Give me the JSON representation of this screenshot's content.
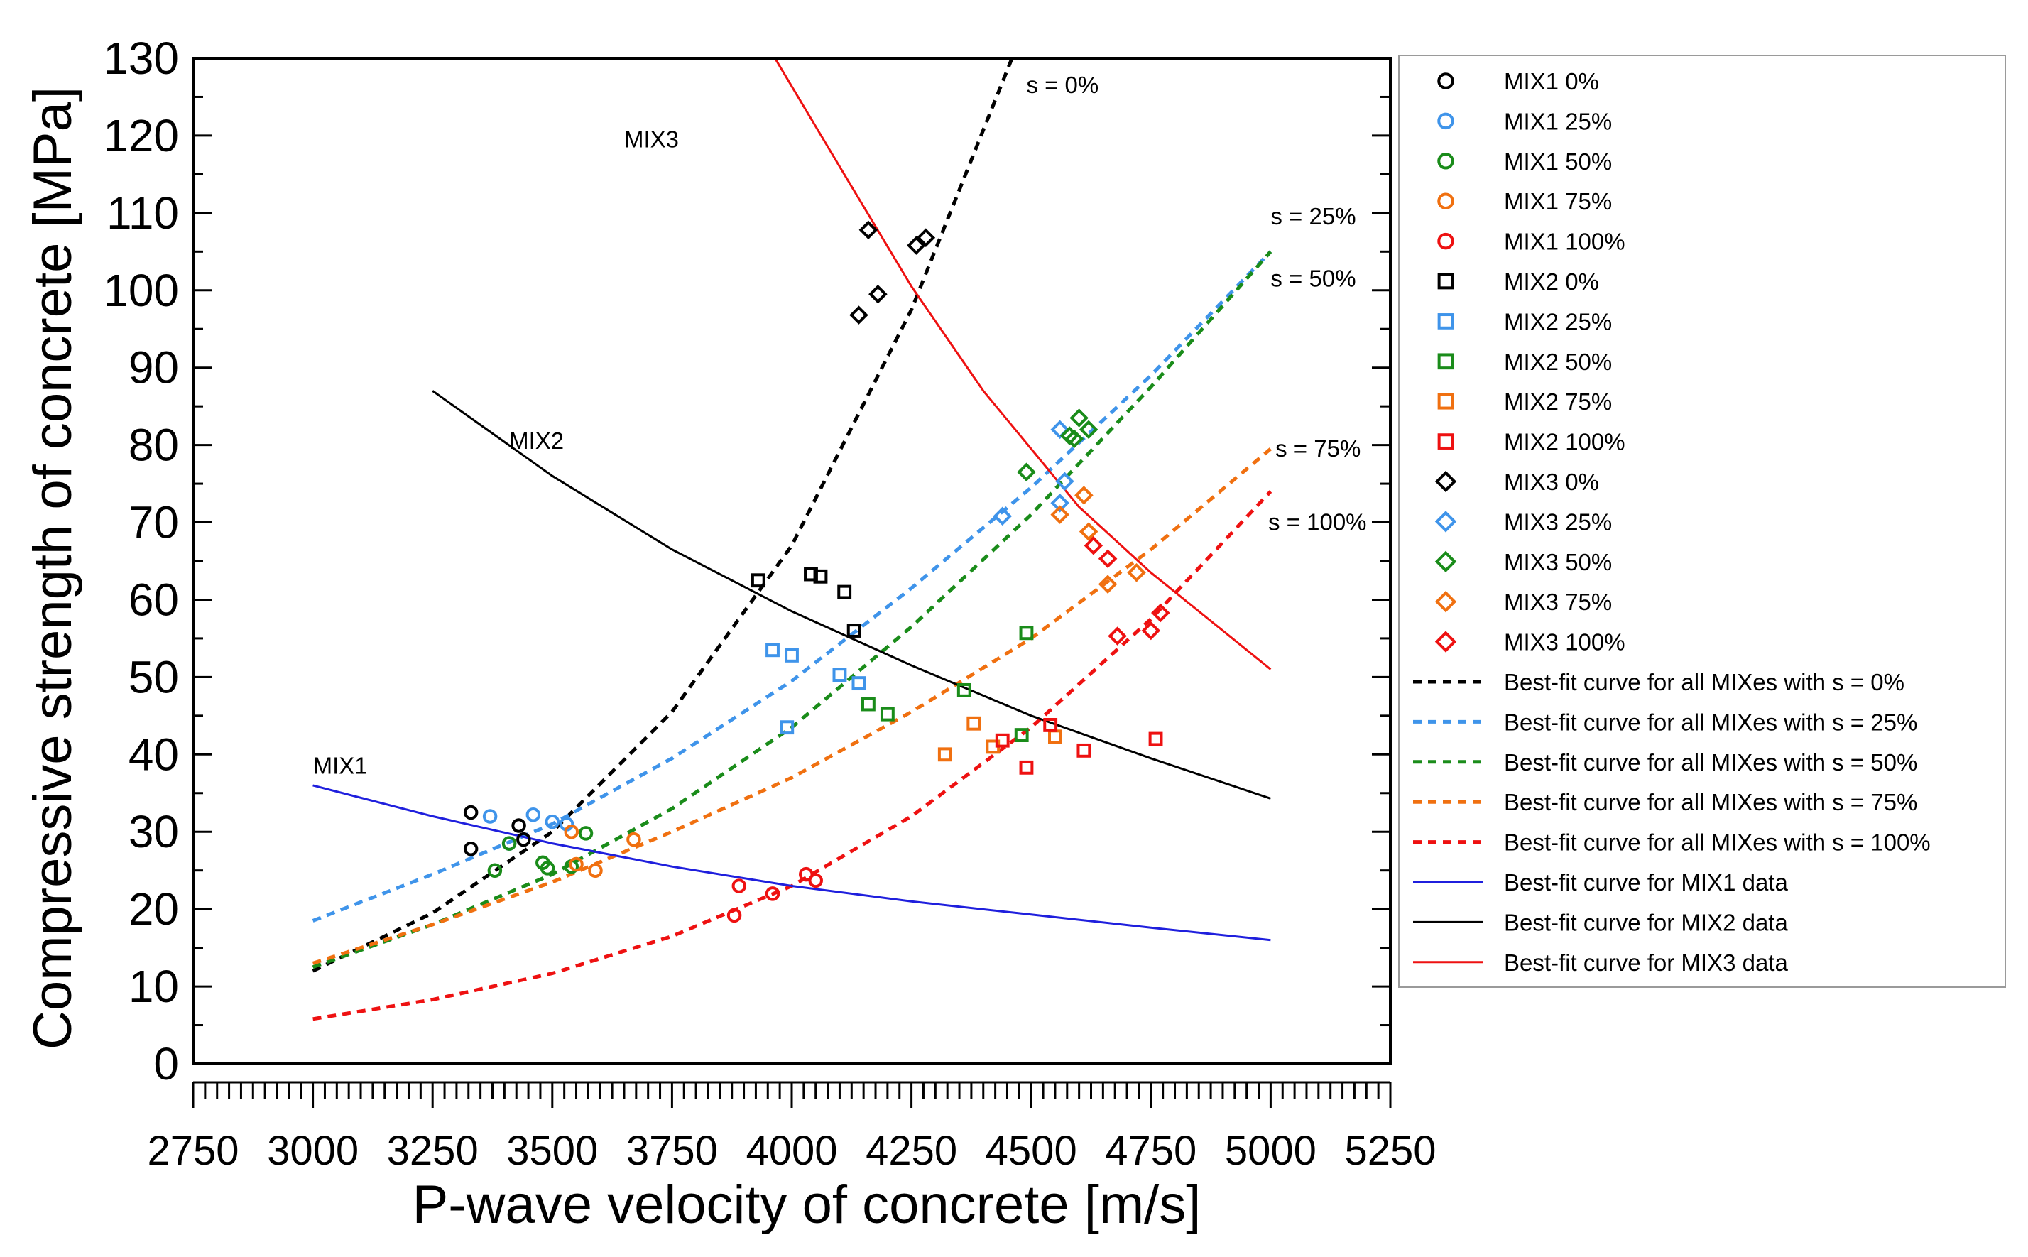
{
  "chart_data": {
    "type": "scatter",
    "title": "",
    "xlabel": "P-wave velocity of concrete [m/s]",
    "ylabel": "Compressive strength of concrete [MPa]",
    "xlim": [
      2750,
      5250
    ],
    "ylim": [
      0,
      130
    ],
    "x_ticks": [
      2750,
      3000,
      3250,
      3500,
      3750,
      4000,
      4250,
      4500,
      4750,
      5000,
      5250
    ],
    "y_ticks": [
      0,
      10,
      20,
      30,
      40,
      50,
      60,
      70,
      80,
      90,
      100,
      110,
      120,
      130
    ],
    "grid": false,
    "legend_position": "right, outside plot",
    "colors": {
      "s0": "#000000",
      "s25": "#3f94ea",
      "s50": "#1a8c1a",
      "s75": "#f07010",
      "s100": "#ee1111",
      "mix1_fit": "#1f1fdd",
      "mix2_fit": "#000000",
      "mix3_fit": "#ee1111"
    },
    "series": [
      {
        "name": "MIX1 0%",
        "marker": "circle",
        "color": "#000000",
        "points": [
          [
            3330,
            27.8
          ],
          [
            3330,
            32.5
          ],
          [
            3430,
            30.8
          ],
          [
            3440,
            29.0
          ]
        ]
      },
      {
        "name": "MIX1 25%",
        "marker": "circle",
        "color": "#3f94ea",
        "points": [
          [
            3370,
            32.0
          ],
          [
            3460,
            32.2
          ],
          [
            3500,
            31.3
          ],
          [
            3530,
            31.0
          ],
          [
            3410,
            28.5
          ]
        ]
      },
      {
        "name": "MIX1 50%",
        "marker": "circle",
        "color": "#1a8c1a",
        "points": [
          [
            3380,
            25.0
          ],
          [
            3410,
            28.5
          ],
          [
            3480,
            26.0
          ],
          [
            3490,
            25.3
          ],
          [
            3540,
            25.5
          ],
          [
            3570,
            29.8
          ]
        ]
      },
      {
        "name": "MIX1 75%",
        "marker": "circle",
        "color": "#f07010",
        "points": [
          [
            3540,
            30.0
          ],
          [
            3550,
            25.8
          ],
          [
            3590,
            25.0
          ],
          [
            3670,
            29.0
          ]
        ]
      },
      {
        "name": "MIX1 100%",
        "marker": "circle",
        "color": "#ee1111",
        "points": [
          [
            3880,
            19.2
          ],
          [
            3890,
            23.0
          ],
          [
            3960,
            22.0
          ],
          [
            4030,
            24.5
          ],
          [
            4050,
            23.7
          ]
        ]
      },
      {
        "name": "MIX2 0%",
        "marker": "square",
        "color": "#000000",
        "points": [
          [
            3930,
            62.5
          ],
          [
            4040,
            63.3
          ],
          [
            4060,
            63.0
          ],
          [
            4110,
            61.0
          ],
          [
            4130,
            56.0
          ]
        ]
      },
      {
        "name": "MIX2 25%",
        "marker": "square",
        "color": "#3f94ea",
        "points": [
          [
            3960,
            53.5
          ],
          [
            4000,
            52.8
          ],
          [
            3990,
            43.5
          ],
          [
            4100,
            50.3
          ],
          [
            4140,
            49.2
          ]
        ]
      },
      {
        "name": "MIX2 50%",
        "marker": "square",
        "color": "#1a8c1a",
        "points": [
          [
            4160,
            46.5
          ],
          [
            4200,
            45.2
          ],
          [
            4360,
            48.3
          ],
          [
            4490,
            55.7
          ],
          [
            4480,
            42.5
          ]
        ]
      },
      {
        "name": "MIX2 75%",
        "marker": "square",
        "color": "#f07010",
        "points": [
          [
            4320,
            40.0
          ],
          [
            4380,
            44.0
          ],
          [
            4420,
            41.0
          ],
          [
            4550,
            42.3
          ]
        ]
      },
      {
        "name": "MIX2 100%",
        "marker": "square",
        "color": "#ee1111",
        "points": [
          [
            4440,
            41.8
          ],
          [
            4490,
            38.3
          ],
          [
            4540,
            43.8
          ],
          [
            4610,
            40.5
          ],
          [
            4760,
            42.0
          ]
        ]
      },
      {
        "name": "MIX3 0%",
        "marker": "diamond",
        "color": "#000000",
        "points": [
          [
            4140,
            96.8
          ],
          [
            4160,
            107.8
          ],
          [
            4180,
            99.5
          ],
          [
            4260,
            105.8
          ],
          [
            4280,
            106.8
          ]
        ]
      },
      {
        "name": "MIX3 25%",
        "marker": "diamond",
        "color": "#3f94ea",
        "points": [
          [
            4440,
            70.8
          ],
          [
            4560,
            82.0
          ],
          [
            4570,
            75.3
          ],
          [
            4560,
            72.5
          ]
        ]
      },
      {
        "name": "MIX3 50%",
        "marker": "diamond",
        "color": "#1a8c1a",
        "points": [
          [
            4490,
            76.5
          ],
          [
            4580,
            81.2
          ],
          [
            4600,
            83.5
          ],
          [
            4620,
            82.0
          ],
          [
            4590,
            80.8
          ]
        ]
      },
      {
        "name": "MIX3 75%",
        "marker": "diamond",
        "color": "#f07010",
        "points": [
          [
            4560,
            71.0
          ],
          [
            4610,
            73.5
          ],
          [
            4620,
            68.8
          ],
          [
            4660,
            62.0
          ],
          [
            4720,
            63.5
          ]
        ]
      },
      {
        "name": "MIX3 100%",
        "marker": "diamond",
        "color": "#ee1111",
        "points": [
          [
            4630,
            67.0
          ],
          [
            4660,
            65.3
          ],
          [
            4680,
            55.3
          ],
          [
            4750,
            56.0
          ],
          [
            4770,
            58.3
          ]
        ]
      }
    ],
    "fit_curves": [
      {
        "name": "Best-fit curve for all MIXes with s = 0%",
        "style": "dashed",
        "color": "#000000",
        "points": [
          [
            3000,
            12.0
          ],
          [
            3250,
            19.5
          ],
          [
            3500,
            30.0
          ],
          [
            3750,
            45.5
          ],
          [
            4000,
            67.0
          ],
          [
            4250,
            97.5
          ],
          [
            4460,
            130.0
          ]
        ]
      },
      {
        "name": "Best-fit curve for all MIXes with s = 25%",
        "style": "dashed",
        "color": "#3f94ea",
        "points": [
          [
            3000,
            18.5
          ],
          [
            3250,
            24.5
          ],
          [
            3500,
            31.0
          ],
          [
            3750,
            39.5
          ],
          [
            4000,
            49.5
          ],
          [
            4250,
            61.5
          ],
          [
            4500,
            74.5
          ],
          [
            4750,
            89.0
          ],
          [
            5000,
            105.0
          ]
        ]
      },
      {
        "name": "Best-fit curve for all MIXes with s = 50%",
        "style": "dashed",
        "color": "#1a8c1a",
        "points": [
          [
            3000,
            12.5
          ],
          [
            3250,
            18.0
          ],
          [
            3500,
            24.5
          ],
          [
            3750,
            33.0
          ],
          [
            4000,
            43.5
          ],
          [
            4250,
            56.5
          ],
          [
            4500,
            71.0
          ],
          [
            4750,
            87.5
          ],
          [
            5000,
            105.0
          ]
        ]
      },
      {
        "name": "Best-fit curve for all MIXes with s = 75%",
        "style": "dashed",
        "color": "#f07010",
        "points": [
          [
            3000,
            13.0
          ],
          [
            3250,
            18.0
          ],
          [
            3500,
            23.5
          ],
          [
            3750,
            30.0
          ],
          [
            4000,
            37.0
          ],
          [
            4250,
            45.5
          ],
          [
            4500,
            55.0
          ],
          [
            4750,
            66.5
          ],
          [
            5000,
            79.5
          ]
        ]
      },
      {
        "name": "Best-fit curve for all MIXes with s = 100%",
        "style": "dashed",
        "color": "#ee1111",
        "points": [
          [
            3000,
            5.8
          ],
          [
            3250,
            8.3
          ],
          [
            3500,
            11.7
          ],
          [
            3750,
            16.5
          ],
          [
            4000,
            23.0
          ],
          [
            4250,
            32.0
          ],
          [
            4500,
            43.5
          ],
          [
            4750,
            57.5
          ],
          [
            5000,
            74.0
          ]
        ]
      },
      {
        "name": "Best-fit curve for MIX1 data",
        "style": "solid",
        "color": "#1f1fdd",
        "points": [
          [
            3000,
            36.0
          ],
          [
            3250,
            32.0
          ],
          [
            3500,
            28.5
          ],
          [
            3750,
            25.5
          ],
          [
            4000,
            23.0
          ],
          [
            4250,
            21.0
          ],
          [
            4500,
            19.3
          ],
          [
            4750,
            17.6
          ],
          [
            5000,
            16.0
          ]
        ]
      },
      {
        "name": "Best-fit curve for MIX2 data",
        "style": "solid",
        "color": "#000000",
        "points": [
          [
            3250,
            87.0
          ],
          [
            3500,
            76.0
          ],
          [
            3750,
            66.5
          ],
          [
            4000,
            58.5
          ],
          [
            4250,
            51.5
          ],
          [
            4500,
            45.0
          ],
          [
            4750,
            39.5
          ],
          [
            5000,
            34.3
          ]
        ]
      },
      {
        "name": "Best-fit curve for MIX3 data",
        "style": "solid",
        "color": "#ee1111",
        "points": [
          [
            3965,
            130.0
          ],
          [
            4100,
            116.0
          ],
          [
            4250,
            100.5
          ],
          [
            4400,
            87.0
          ],
          [
            4500,
            79.5
          ],
          [
            4600,
            72.0
          ],
          [
            4750,
            63.5
          ],
          [
            4900,
            56.0
          ],
          [
            5000,
            51.0
          ]
        ]
      }
    ],
    "annotations": [
      {
        "text": "s = 0%",
        "x": 4490,
        "y": 125.5
      },
      {
        "text": "MIX3",
        "x": 3650,
        "y": 118.5
      },
      {
        "text": "s = 25%",
        "x": 5000,
        "y": 108.5
      },
      {
        "text": "s = 50%",
        "x": 5000,
        "y": 100.5
      },
      {
        "text": "MIX2",
        "x": 3410,
        "y": 79.5
      },
      {
        "text": "s = 75%",
        "x": 5010,
        "y": 78.5
      },
      {
        "text": "s = 100%",
        "x": 4995,
        "y": 69.0
      },
      {
        "text": "MIX1",
        "x": 3000,
        "y": 37.5
      }
    ],
    "legend": [
      {
        "label": "MIX1 0%",
        "kind": "circle",
        "color": "#000000"
      },
      {
        "label": "MIX1 25%",
        "kind": "circle",
        "color": "#3f94ea"
      },
      {
        "label": "MIX1 50%",
        "kind": "circle",
        "color": "#1a8c1a"
      },
      {
        "label": "MIX1 75%",
        "kind": "circle",
        "color": "#f07010"
      },
      {
        "label": "MIX1 100%",
        "kind": "circle",
        "color": "#ee1111"
      },
      {
        "label": "MIX2 0%",
        "kind": "square",
        "color": "#000000"
      },
      {
        "label": "MIX2 25%",
        "kind": "square",
        "color": "#3f94ea"
      },
      {
        "label": "MIX2 50%",
        "kind": "square",
        "color": "#1a8c1a"
      },
      {
        "label": "MIX2 75%",
        "kind": "square",
        "color": "#f07010"
      },
      {
        "label": "MIX2 100%",
        "kind": "square",
        "color": "#ee1111"
      },
      {
        "label": "MIX3 0%",
        "kind": "diamond",
        "color": "#000000"
      },
      {
        "label": "MIX3 25%",
        "kind": "diamond",
        "color": "#3f94ea"
      },
      {
        "label": "MIX3 50%",
        "kind": "diamond",
        "color": "#1a8c1a"
      },
      {
        "label": "MIX3 75%",
        "kind": "diamond",
        "color": "#f07010"
      },
      {
        "label": "MIX3 100%",
        "kind": "diamond",
        "color": "#ee1111"
      },
      {
        "label": "Best-fit curve for all MIXes with s = 0%",
        "kind": "dashed",
        "color": "#000000"
      },
      {
        "label": "Best-fit curve for all MIXes with s = 25%",
        "kind": "dashed",
        "color": "#3f94ea"
      },
      {
        "label": "Best-fit curve for all MIXes with s = 50%",
        "kind": "dashed",
        "color": "#1a8c1a"
      },
      {
        "label": "Best-fit curve for all MIXes with s = 75%",
        "kind": "dashed",
        "color": "#f07010"
      },
      {
        "label": "Best-fit curve for all MIXes with s = 100%",
        "kind": "dashed",
        "color": "#ee1111"
      },
      {
        "label": "Best-fit curve for MIX1 data",
        "kind": "solid",
        "color": "#1f1fdd"
      },
      {
        "label": "Best-fit curve for MIX2 data",
        "kind": "solid",
        "color": "#000000"
      },
      {
        "label": "Best-fit curve for MIX3 data",
        "kind": "solid",
        "color": "#ee1111"
      }
    ]
  }
}
